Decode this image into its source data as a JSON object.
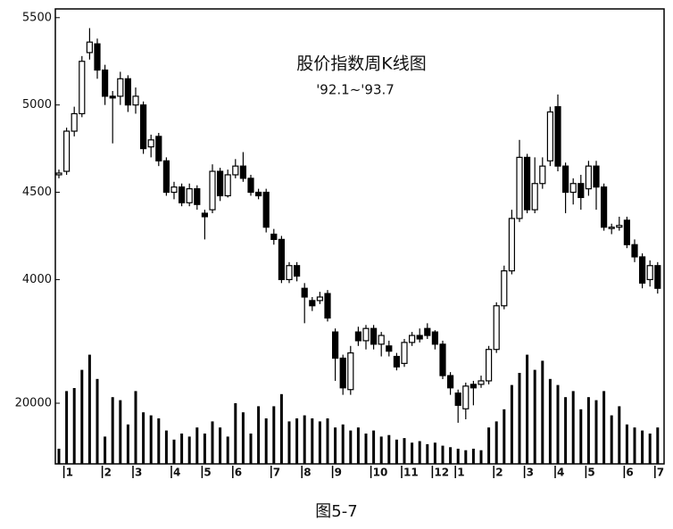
{
  "chart_data": {
    "type": "candlestick",
    "title": "股价指数周K线图",
    "subtitle": "'92.1~'93.7",
    "caption": "图5-7",
    "categories": [
      null,
      "1",
      null,
      null,
      null,
      null,
      "2",
      null,
      null,
      null,
      "3",
      null,
      null,
      null,
      null,
      "4",
      null,
      null,
      null,
      "5",
      null,
      null,
      null,
      "6",
      null,
      null,
      null,
      null,
      "7",
      null,
      null,
      null,
      "8",
      null,
      null,
      null,
      "9",
      null,
      null,
      null,
      null,
      "10",
      null,
      null,
      null,
      "11",
      null,
      null,
      null,
      "12",
      null,
      null,
      "1",
      null,
      null,
      null,
      null,
      "2",
      null,
      null,
      null,
      "3",
      null,
      null,
      null,
      "4",
      null,
      null,
      null,
      "5",
      null,
      null,
      null,
      null,
      "6",
      null,
      null,
      null,
      "7"
    ],
    "open": [
      4600,
      4620,
      4850,
      4950,
      5300,
      5350,
      5200,
      5050,
      5050,
      5150,
      5000,
      5000,
      4760,
      4820,
      4680,
      4500,
      4530,
      4440,
      4520,
      4380,
      4400,
      4620,
      4480,
      4600,
      4650,
      4580,
      4500,
      4500,
      4260,
      4230,
      4000,
      4080,
      3950,
      3880,
      3880,
      3920,
      3700,
      3550,
      3370,
      3700,
      3650,
      3720,
      3630,
      3620,
      3560,
      3520,
      3640,
      3680,
      3720,
      3700,
      3630,
      3450,
      3350,
      3260,
      3400,
      3400,
      3420,
      3600,
      3850,
      4050,
      4350,
      4700,
      4400,
      4550,
      4680,
      4990,
      4650,
      4500,
      4550,
      4520,
      4650,
      4530,
      4300,
      4300,
      4340,
      4200,
      4130,
      4000,
      4080
    ],
    "high": [
      4630,
      4870,
      4990,
      5280,
      5440,
      5380,
      5230,
      5080,
      5190,
      5170,
      5100,
      5020,
      4830,
      4840,
      4700,
      4560,
      4550,
      4550,
      4540,
      4400,
      4660,
      4640,
      4630,
      4690,
      4730,
      4600,
      4520,
      4520,
      4290,
      4250,
      4100,
      4100,
      3980,
      3900,
      3930,
      3940,
      3720,
      3570,
      3620,
      3730,
      3740,
      3740,
      3700,
      3650,
      3580,
      3660,
      3700,
      3720,
      3750,
      3710,
      3650,
      3470,
      3370,
      3410,
      3420,
      3450,
      3620,
      3870,
      4080,
      4400,
      4800,
      4720,
      4700,
      4700,
      4990,
      5060,
      4670,
      4580,
      4600,
      4680,
      4680,
      4550,
      4320,
      4360,
      4360,
      4230,
      4150,
      4110,
      4100
    ],
    "low": [
      4580,
      4600,
      4820,
      4930,
      5260,
      5150,
      5000,
      4780,
      5000,
      4960,
      4950,
      4720,
      4700,
      4650,
      4480,
      4460,
      4420,
      4420,
      4400,
      4230,
      4380,
      4450,
      4470,
      4580,
      4560,
      4480,
      4460,
      4270,
      4200,
      3980,
      3980,
      3990,
      3750,
      3820,
      3860,
      3760,
      3420,
      3340,
      3340,
      3620,
      3600,
      3600,
      3560,
      3560,
      3480,
      3500,
      3620,
      3640,
      3660,
      3600,
      3430,
      3340,
      3180,
      3200,
      3280,
      3380,
      3400,
      3580,
      3830,
      4030,
      4330,
      4380,
      4380,
      4520,
      4650,
      4620,
      4380,
      4430,
      4400,
      4480,
      4400,
      4280,
      4260,
      4280,
      4180,
      4100,
      3950,
      3960,
      3920
    ],
    "close": [
      4610,
      4850,
      4950,
      5250,
      5360,
      5200,
      5050,
      5040,
      5150,
      5000,
      5050,
      4750,
      4800,
      4680,
      4500,
      4530,
      4440,
      4520,
      4430,
      4360,
      4620,
      4480,
      4600,
      4650,
      4580,
      4500,
      4480,
      4300,
      4230,
      4000,
      4080,
      4020,
      3900,
      3850,
      3900,
      3780,
      3550,
      3380,
      3580,
      3650,
      3720,
      3630,
      3680,
      3590,
      3500,
      3640,
      3680,
      3660,
      3680,
      3630,
      3450,
      3380,
      3280,
      3390,
      3380,
      3420,
      3600,
      3850,
      4050,
      4350,
      4700,
      4400,
      4550,
      4650,
      4960,
      4650,
      4500,
      4550,
      4470,
      4650,
      4530,
      4300,
      4300,
      4310,
      4200,
      4130,
      3980,
      4080,
      3950
    ],
    "volume": [
      5000,
      24000,
      25000,
      31000,
      36000,
      28000,
      9000,
      22000,
      21000,
      13000,
      24000,
      17000,
      16000,
      15000,
      11000,
      8000,
      10000,
      9000,
      12000,
      10000,
      14000,
      12000,
      9000,
      20000,
      17000,
      10000,
      19000,
      15000,
      19000,
      23000,
      14000,
      15000,
      16000,
      15000,
      14000,
      15000,
      12000,
      13000,
      11000,
      12000,
      10000,
      11000,
      9000,
      9500,
      8000,
      8500,
      7000,
      7500,
      6500,
      7000,
      6000,
      5500,
      5000,
      4500,
      5000,
      4500,
      12000,
      14000,
      18000,
      26000,
      30000,
      36000,
      31000,
      34000,
      28000,
      26000,
      22000,
      24000,
      18000,
      22000,
      21000,
      24000,
      16000,
      19000,
      13000,
      12000,
      11000,
      10000,
      12000
    ],
    "up_color": "#ffffff",
    "down_color": "#000000",
    "volume_color": "#000000",
    "ylim": [
      3200,
      5550
    ],
    "yticks": [
      4000,
      4500,
      5000,
      5500
    ],
    "y2lim": [
      0,
      150000
    ],
    "y2ticks": [
      20000
    ]
  }
}
